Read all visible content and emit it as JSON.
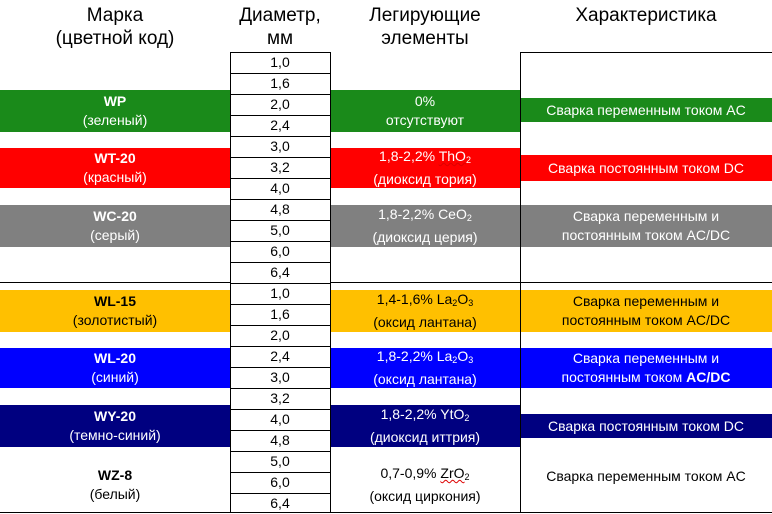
{
  "headers": {
    "brand": [
      "Марка",
      "(цветной код)"
    ],
    "diameter": [
      "Диаметр,",
      "мм"
    ],
    "alloy": [
      "Легирующие",
      "элементы"
    ],
    "characteristic": "Характеристика"
  },
  "diameters": [
    "1,0",
    "1,6",
    "2,0",
    "2,4",
    "3,0",
    "3,2",
    "4,0",
    "4,8",
    "5,0",
    "6,0",
    "6,4",
    "1,0",
    "1,6",
    "2,0",
    "2,4",
    "3,0",
    "3,2",
    "4,0",
    "4,8",
    "5,0",
    "6,0",
    "6,4"
  ],
  "rows": [
    {
      "name": "WP",
      "color_name": "(зеленый)",
      "alloy_line1": "0%",
      "alloy_line2": "отсутствуют",
      "char_line1": "Сварка переменным током AC",
      "char_line2": "",
      "bg": "#1a8a1a",
      "fg": "#ffffff"
    },
    {
      "name": "WT-20",
      "color_name": "(красный)",
      "alloy_pct": "1,8-2,2%",
      "alloy_formula": "ThO",
      "alloy_sub": "2",
      "alloy_line2": "(диоксид тория)",
      "char_line1": "Сварка постоянным током DC",
      "char_line2": "",
      "bg": "#ff0000",
      "fg": "#ffffff"
    },
    {
      "name": "WC-20",
      "color_name": "(серый)",
      "alloy_pct": "1,8-2,2%",
      "alloy_formula": "CeO",
      "alloy_sub": "2",
      "alloy_line2": "(диоксид церия)",
      "char_line1": "Сварка переменным и",
      "char_line2": "постоянным током AC/DC",
      "bg": "#808080",
      "fg": "#ffffff"
    },
    {
      "name": "WL-15",
      "color_name": "(золотистый)",
      "alloy_pct": "1,4-1,6%",
      "alloy_formula": "La",
      "alloy_sub": "2",
      "alloy_formula2": "O",
      "alloy_sub2": "3",
      "alloy_line2": "(оксид лантана)",
      "char_line1": "Сварка переменным и",
      "char_line2": "постоянным током AC/DC",
      "bg": "#ffc000",
      "fg": "#000000"
    },
    {
      "name": "WL-20",
      "color_name": "(синий)",
      "alloy_pct": "1,8-2,2%",
      "alloy_formula": "La",
      "alloy_sub": "2",
      "alloy_formula2": "O",
      "alloy_sub2": "3",
      "alloy_line2": "(оксид лантана)",
      "char_line1": "Сварка переменным и",
      "char_line2a": "постоянным током ",
      "char_line2b": "AC/DC",
      "bg": "#0000ff",
      "fg": "#ffffff"
    },
    {
      "name": "WY-20",
      "color_name": "(темно-синий)",
      "alloy_pct": "1,8-2,2%",
      "alloy_formula": "YtO",
      "alloy_sub": "2",
      "alloy_line2": "(диоксид иттрия)",
      "char_line1": "Сварка постоянным током DC",
      "char_line2": "",
      "bg": "#000080",
      "fg": "#ffffff"
    },
    {
      "name": "WZ-8",
      "color_name": "(белый)",
      "alloy_pct": "0,7-0,9%",
      "alloy_formula": "ZrO",
      "alloy_sub": "2",
      "alloy_line2": "(оксид циркония)",
      "char_line1": "Сварка переменным током AC",
      "char_line2": "",
      "bg": "#ffffff",
      "fg": "#000000"
    }
  ]
}
